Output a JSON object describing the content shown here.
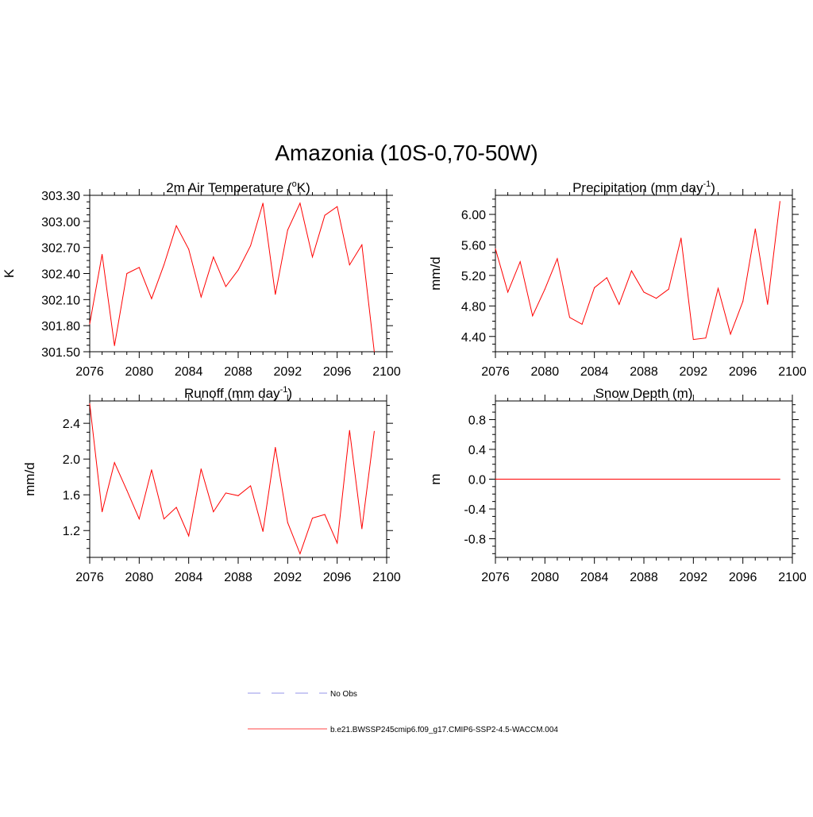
{
  "title": "Amazonia (10S-0,70-50W)",
  "legend": {
    "items": [
      {
        "label": "No Obs",
        "color": "#aaaaee",
        "style": "dashed"
      },
      {
        "label": "b.e21.BWSSP245cmip6.f09_g17.CMIP6-SSP2-4.5-WACCM.004",
        "color": "#ff4444",
        "style": "solid"
      }
    ]
  },
  "chart_data": [
    {
      "id": "temp",
      "type": "line",
      "title": "2m Air Temperature (",
      "title_sup": "o",
      "title_post": "K)",
      "ylabel": "K",
      "xlim": [
        2076,
        2100
      ],
      "ylim": [
        301.5,
        303.3
      ],
      "xticks": [
        2076,
        2080,
        2084,
        2088,
        2092,
        2096,
        2100
      ],
      "yticks": [
        301.5,
        301.8,
        302.1,
        302.4,
        302.7,
        303.0,
        303.3
      ],
      "yticks_labels": [
        "301.50",
        "301.80",
        "302.10",
        "302.40",
        "302.70",
        "303.00",
        "303.30"
      ],
      "color": "#ff0000",
      "x": [
        2076,
        2077,
        2078,
        2079,
        2080,
        2081,
        2082,
        2083,
        2084,
        2085,
        2086,
        2087,
        2088,
        2089,
        2090,
        2091,
        2092,
        2093,
        2094,
        2095,
        2096,
        2097,
        2098,
        2099
      ],
      "y": [
        301.82,
        302.62,
        301.57,
        302.4,
        302.47,
        302.11,
        302.5,
        302.95,
        302.68,
        302.13,
        302.59,
        302.25,
        302.44,
        302.72,
        303.21,
        302.16,
        302.9,
        303.21,
        302.59,
        303.07,
        303.17,
        302.5,
        302.73,
        301.5
      ]
    },
    {
      "id": "precip",
      "type": "line",
      "title": "Precipitation (mm day",
      "title_sup": "-1",
      "title_post": ")",
      "ylabel": "mm/d",
      "xlim": [
        2076,
        2100
      ],
      "ylim": [
        4.2,
        6.25
      ],
      "xticks": [
        2076,
        2080,
        2084,
        2088,
        2092,
        2096,
        2100
      ],
      "yticks": [
        4.4,
        4.8,
        5.2,
        5.6,
        6.0
      ],
      "yticks_labels": [
        "4.40",
        "4.80",
        "5.20",
        "5.60",
        "6.00"
      ],
      "color": "#ff0000",
      "x": [
        2076,
        2077,
        2078,
        2079,
        2080,
        2081,
        2082,
        2083,
        2084,
        2085,
        2086,
        2087,
        2088,
        2089,
        2090,
        2091,
        2092,
        2093,
        2094,
        2095,
        2096,
        2097,
        2098,
        2099
      ],
      "y": [
        5.55,
        4.98,
        5.38,
        4.67,
        5.02,
        5.42,
        4.65,
        4.56,
        5.04,
        5.17,
        4.82,
        5.26,
        4.98,
        4.9,
        5.02,
        5.69,
        4.36,
        4.38,
        5.03,
        4.43,
        4.86,
        5.81,
        4.82,
        6.17
      ]
    },
    {
      "id": "runoff",
      "type": "line",
      "title": "Runoff (mm day",
      "title_sup": "-1",
      "title_post": ")",
      "ylabel": "mm/d",
      "xlim": [
        2076,
        2100
      ],
      "ylim": [
        0.9,
        2.65
      ],
      "xticks": [
        2076,
        2080,
        2084,
        2088,
        2092,
        2096,
        2100
      ],
      "yticks": [
        1.2,
        1.6,
        2.0,
        2.4
      ],
      "yticks_labels": [
        "1.2",
        "1.6",
        "2.0",
        "2.4"
      ],
      "color": "#ff0000",
      "x": [
        2076,
        2077,
        2078,
        2079,
        2080,
        2081,
        2082,
        2083,
        2084,
        2085,
        2086,
        2087,
        2088,
        2089,
        2090,
        2091,
        2092,
        2093,
        2094,
        2095,
        2096,
        2097,
        2098,
        2099
      ],
      "y": [
        2.62,
        1.41,
        1.96,
        1.65,
        1.33,
        1.88,
        1.33,
        1.46,
        1.14,
        1.89,
        1.41,
        1.62,
        1.59,
        1.7,
        1.19,
        2.13,
        1.29,
        0.94,
        1.34,
        1.38,
        1.06,
        2.32,
        1.22,
        2.31
      ]
    },
    {
      "id": "snow",
      "type": "line",
      "title": "Snow Depth (m)",
      "title_sup": "",
      "title_post": "",
      "ylabel": "m",
      "xlim": [
        2076,
        2100
      ],
      "ylim": [
        -1.05,
        1.05
      ],
      "xticks": [
        2076,
        2080,
        2084,
        2088,
        2092,
        2096,
        2100
      ],
      "yticks": [
        -0.8,
        -0.4,
        0.0,
        0.4,
        0.8
      ],
      "yticks_labels": [
        "-0.8",
        "-0.4",
        "0.0",
        "0.4",
        "0.8"
      ],
      "color": "#ff0000",
      "x": [
        2076,
        2077,
        2078,
        2079,
        2080,
        2081,
        2082,
        2083,
        2084,
        2085,
        2086,
        2087,
        2088,
        2089,
        2090,
        2091,
        2092,
        2093,
        2094,
        2095,
        2096,
        2097,
        2098,
        2099
      ],
      "y": [
        0,
        0,
        0,
        0,
        0,
        0,
        0,
        0,
        0,
        0,
        0,
        0,
        0,
        0,
        0,
        0,
        0,
        0,
        0,
        0,
        0,
        0,
        0,
        0
      ]
    }
  ]
}
